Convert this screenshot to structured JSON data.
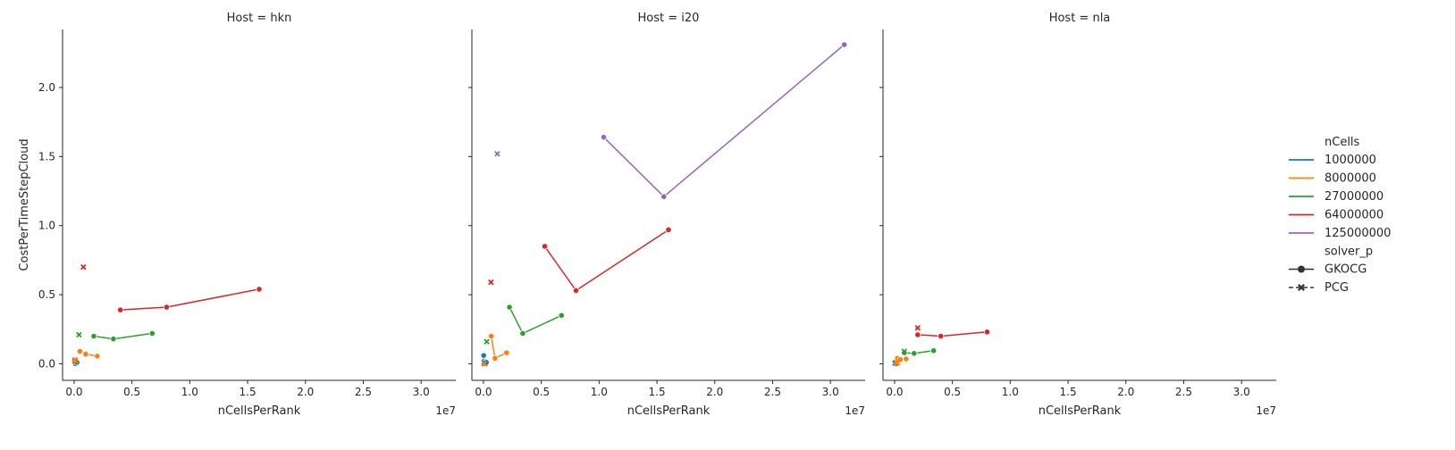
{
  "chart_data": {
    "type": "scatter",
    "xlabel": "nCellsPerRank",
    "ylabel": "CostPerTimeStepCloud",
    "x_offset_label": "1e7",
    "xlim": [
      -1000000,
      33000000
    ],
    "ylim": [
      -0.12,
      2.42
    ],
    "x_ticks": [
      0,
      5000000,
      10000000,
      15000000,
      20000000,
      25000000,
      30000000
    ],
    "x_tick_labels": [
      "0.0",
      "0.5",
      "1.0",
      "1.5",
      "2.0",
      "2.5",
      "3.0"
    ],
    "y_ticks": [
      0.0,
      0.5,
      1.0,
      1.5,
      2.0
    ],
    "y_tick_labels": [
      "0.0",
      "0.5",
      "1.0",
      "1.5",
      "2.0"
    ],
    "grid": false,
    "legend_placement": "right",
    "legend": {
      "hue_title": "nCells",
      "hue_entries": [
        {
          "label": "1000000",
          "color": "#1f77b4"
        },
        {
          "label": "8000000",
          "color": "#ff7f0e"
        },
        {
          "label": "27000000",
          "color": "#2ca02c"
        },
        {
          "label": "64000000",
          "color": "#d62728"
        },
        {
          "label": "125000000",
          "color": "#9467bd"
        }
      ],
      "style_title": "solver_p",
      "style_entries": [
        {
          "label": "GKOCG",
          "marker": "circle",
          "dash": "solid"
        },
        {
          "label": "PCG",
          "marker": "x",
          "dash": "dashed"
        }
      ]
    },
    "panels": [
      {
        "title": "Host = hkn",
        "series": [
          {
            "hue": "1000000",
            "style": "GKOCG",
            "points": [
              [
                20000,
                0.02
              ],
              [
                60000,
                0.01
              ],
              [
                125000,
                0.0
              ],
              [
                250000,
                0.01
              ]
            ]
          },
          {
            "hue": "1000000",
            "style": "PCG",
            "points": [
              [
                62000,
                0.02
              ]
            ]
          },
          {
            "hue": "8000000",
            "style": "GKOCG",
            "points": [
              [
                500000,
                0.09
              ],
              [
                1000000,
                0.07
              ],
              [
                2000000,
                0.055
              ]
            ]
          },
          {
            "hue": "8000000",
            "style": "PCG",
            "points": [
              [
                62000,
                0.03
              ],
              [
                125000,
                0.02
              ]
            ]
          },
          {
            "hue": "27000000",
            "style": "GKOCG",
            "points": [
              [
                1700000,
                0.2
              ],
              [
                3400000,
                0.18
              ],
              [
                6750000,
                0.22
              ]
            ]
          },
          {
            "hue": "27000000",
            "style": "PCG",
            "points": [
              [
                420000,
                0.21
              ]
            ]
          },
          {
            "hue": "64000000",
            "style": "GKOCG",
            "points": [
              [
                4000000,
                0.39
              ],
              [
                8000000,
                0.41
              ],
              [
                16000000,
                0.54
              ]
            ]
          },
          {
            "hue": "64000000",
            "style": "PCG",
            "points": [
              [
                800000,
                0.7
              ]
            ]
          }
        ]
      },
      {
        "title": "Host = i20",
        "series": [
          {
            "hue": "1000000",
            "style": "GKOCG",
            "points": [
              [
                20000,
                0.06
              ],
              [
                60000,
                0.02
              ],
              [
                125000,
                0.01
              ],
              [
                250000,
                0.01
              ]
            ]
          },
          {
            "hue": "1000000",
            "style": "PCG",
            "points": [
              [
                60000,
                0.01
              ],
              [
                125000,
                0.0
              ]
            ]
          },
          {
            "hue": "8000000",
            "style": "GKOCG",
            "points": [
              [
                670000,
                0.2
              ],
              [
                1000000,
                0.04
              ],
              [
                2000000,
                0.08
              ]
            ]
          },
          {
            "hue": "8000000",
            "style": "PCG",
            "points": [
              [
                60000,
                0.0
              ]
            ]
          },
          {
            "hue": "27000000",
            "style": "GKOCG",
            "points": [
              [
                2250000,
                0.41
              ],
              [
                3400000,
                0.22
              ],
              [
                6750000,
                0.35
              ]
            ]
          },
          {
            "hue": "27000000",
            "style": "PCG",
            "points": [
              [
                280000,
                0.16
              ]
            ]
          },
          {
            "hue": "64000000",
            "style": "GKOCG",
            "points": [
              [
                5300000,
                0.85
              ],
              [
                8000000,
                0.53
              ],
              [
                16000000,
                0.97
              ]
            ]
          },
          {
            "hue": "64000000",
            "style": "PCG",
            "points": [
              [
                650000,
                0.59
              ]
            ]
          },
          {
            "hue": "125000000",
            "style": "GKOCG",
            "points": [
              [
                10400000,
                1.64
              ],
              [
                15600000,
                1.21
              ],
              [
                31200000,
                2.31
              ]
            ]
          },
          {
            "hue": "125000000",
            "style": "PCG",
            "points": [
              [
                1200000,
                1.52
              ]
            ]
          }
        ]
      },
      {
        "title": "Host = nla",
        "series": [
          {
            "hue": "1000000",
            "style": "GKOCG",
            "points": [
              [
                20000,
                0.01
              ],
              [
                60000,
                0.005
              ],
              [
                125000,
                0.0
              ]
            ]
          },
          {
            "hue": "1000000",
            "style": "PCG",
            "points": [
              [
                30000,
                0.005
              ]
            ]
          },
          {
            "hue": "8000000",
            "style": "GKOCG",
            "points": [
              [
                250000,
                0.04
              ],
              [
                500000,
                0.03
              ],
              [
                1000000,
                0.035
              ]
            ]
          },
          {
            "hue": "8000000",
            "style": "PCG",
            "points": [
              [
                125000,
                0.01
              ],
              [
                250000,
                0.005
              ]
            ]
          },
          {
            "hue": "27000000",
            "style": "GKOCG",
            "points": [
              [
                840000,
                0.08
              ],
              [
                1690000,
                0.075
              ],
              [
                3375000,
                0.095
              ]
            ]
          },
          {
            "hue": "27000000",
            "style": "PCG",
            "points": [
              [
                840000,
                0.09
              ]
            ]
          },
          {
            "hue": "64000000",
            "style": "GKOCG",
            "points": [
              [
                2000000,
                0.21
              ],
              [
                4000000,
                0.2
              ],
              [
                8000000,
                0.23
              ]
            ]
          },
          {
            "hue": "64000000",
            "style": "PCG",
            "points": [
              [
                2000000,
                0.26
              ]
            ]
          }
        ]
      }
    ]
  }
}
